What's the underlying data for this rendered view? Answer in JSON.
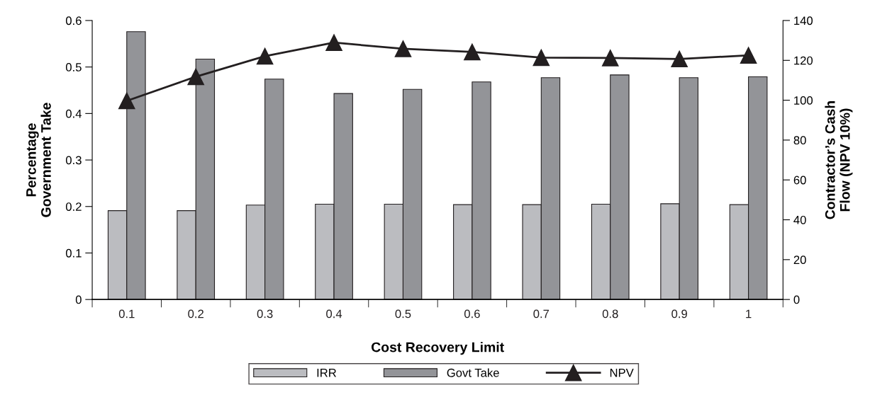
{
  "chart_data": {
    "type": "bar",
    "categories": [
      "0.1",
      "0.2",
      "0.3",
      "0.4",
      "0.5",
      "0.6",
      "0.7",
      "0.8",
      "0.9",
      "1"
    ],
    "series": [
      {
        "name": "IRR",
        "color": "#bbbcc0",
        "values": [
          0.191,
          0.191,
          0.203,
          0.205,
          0.205,
          0.204,
          0.204,
          0.205,
          0.206,
          0.204
        ]
      },
      {
        "name": "Govt Take",
        "color": "#939498",
        "values": [
          0.576,
          0.517,
          0.474,
          0.443,
          0.452,
          0.468,
          0.477,
          0.483,
          0.477,
          0.479
        ]
      },
      {
        "name": "NPV",
        "type": "line",
        "axis": "y2",
        "color": "#231f20",
        "marker": "triangle",
        "values": [
          99.7,
          111.8,
          122.1,
          128.9,
          125.8,
          124.2,
          121.4,
          121.2,
          120.7,
          122.5
        ]
      }
    ],
    "xlabel": "Cost Recovery Limit",
    "ylabel": "Percentage\nGovernment Take",
    "y2label": "Contractor’s Cash\nFlow (NPV 10%)",
    "ylim": [
      0,
      0.6
    ],
    "yticks": [
      0,
      0.1,
      0.2,
      0.3,
      0.4,
      0.5,
      0.6
    ],
    "y2lim": [
      0,
      140
    ],
    "y2ticks": [
      0,
      20,
      40,
      60,
      80,
      100,
      120,
      140
    ],
    "grid": false,
    "legend": "bottom"
  }
}
